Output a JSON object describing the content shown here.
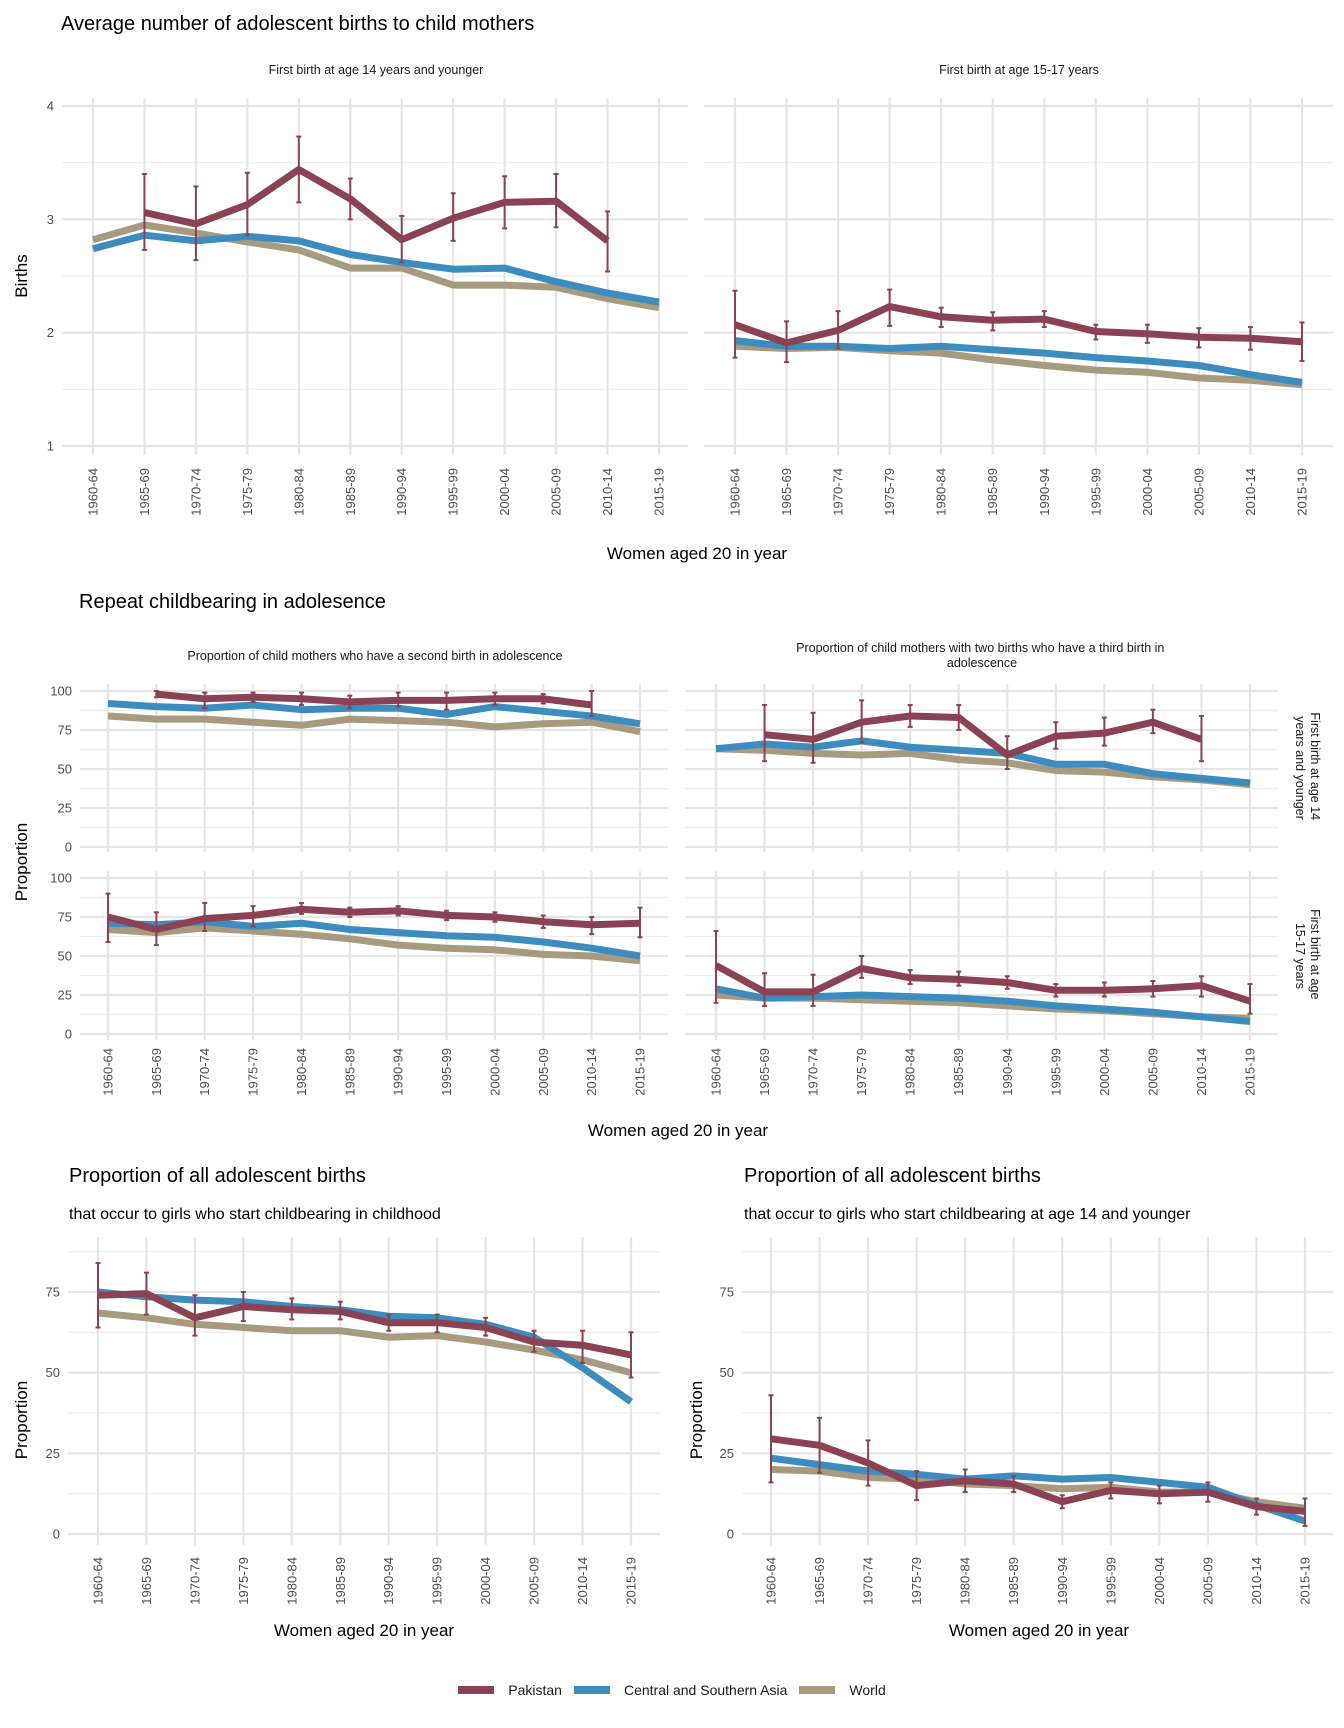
{
  "legend": {
    "items": [
      {
        "name": "Pakistan",
        "color": "#8B4353"
      },
      {
        "name": "Central and Southern Asia",
        "color": "#3D8CBF"
      },
      {
        "name": "World",
        "color": "#A89A7E"
      }
    ]
  },
  "chart_data": [
    {
      "id": "avg-births",
      "type": "line",
      "title": "Average number of adolescent births to child mothers",
      "ylabel": "Births",
      "xlabel": "Women aged 20 in year",
      "ylim": [
        1,
        4
      ],
      "yticks": [
        1,
        2,
        3,
        4
      ],
      "grid": true,
      "categories": [
        "1960-64",
        "1965-69",
        "1970-74",
        "1975-79",
        "1980-84",
        "1985-89",
        "1990-94",
        "1995-99",
        "2000-04",
        "2005-09",
        "2010-14",
        "2015-19"
      ],
      "panels": [
        {
          "strip": "First birth at age 14 years and younger",
          "series": [
            {
              "name": "Pakistan",
              "values": [
                null,
                3.06,
                2.96,
                3.13,
                3.44,
                3.18,
                2.82,
                3.01,
                3.15,
                3.16,
                2.81,
                null
              ],
              "err_low": [
                null,
                2.73,
                2.64,
                2.86,
                3.15,
                3.0,
                2.62,
                2.81,
                2.92,
                2.93,
                2.54,
                null
              ],
              "err_high": [
                null,
                3.4,
                3.29,
                3.41,
                3.73,
                3.36,
                3.03,
                3.23,
                3.38,
                3.4,
                3.07,
                null
              ]
            },
            {
              "name": "Central and Southern Asia",
              "values": [
                2.74,
                2.86,
                2.81,
                2.85,
                2.81,
                2.69,
                2.62,
                2.56,
                2.57,
                2.45,
                2.35,
                2.27
              ]
            },
            {
              "name": "World",
              "values": [
                2.82,
                2.95,
                2.88,
                2.8,
                2.73,
                2.57,
                2.57,
                2.42,
                2.42,
                2.4,
                2.3,
                2.22
              ]
            }
          ]
        },
        {
          "strip": "First birth at age 15-17 years",
          "series": [
            {
              "name": "Pakistan",
              "values": [
                2.07,
                1.91,
                2.02,
                2.23,
                2.14,
                2.11,
                2.12,
                2.01,
                1.99,
                1.96,
                1.95,
                1.92
              ],
              "err_low": [
                1.78,
                1.74,
                1.86,
                2.06,
                2.05,
                2.02,
                2.05,
                1.94,
                1.91,
                1.87,
                1.85,
                1.75
              ],
              "err_high": [
                2.37,
                2.1,
                2.19,
                2.38,
                2.22,
                2.18,
                2.19,
                2.07,
                2.07,
                2.04,
                2.05,
                2.09
              ]
            },
            {
              "name": "Central and Southern Asia",
              "values": [
                1.93,
                1.88,
                1.88,
                1.86,
                1.88,
                1.85,
                1.82,
                1.78,
                1.75,
                1.71,
                1.63,
                1.56
              ]
            },
            {
              "name": "World",
              "values": [
                1.88,
                1.86,
                1.87,
                1.84,
                1.82,
                1.76,
                1.71,
                1.67,
                1.65,
                1.6,
                1.58,
                1.54
              ]
            }
          ]
        }
      ]
    },
    {
      "id": "repeat-childbearing",
      "type": "line",
      "title": "Repeat childbearing in adolesence",
      "ylabel": "Proportion",
      "xlabel": "Women aged 20 in year",
      "ylim": [
        0,
        100
      ],
      "yticks": [
        0,
        25,
        50,
        75,
        100
      ],
      "grid": true,
      "categories": [
        "1960-64",
        "1965-69",
        "1970-74",
        "1975-79",
        "1980-84",
        "1985-89",
        "1990-94",
        "1995-99",
        "2000-04",
        "2005-09",
        "2010-14",
        "2015-19"
      ],
      "columns": [
        "Proportion of child mothers who have a second birth in adolescence",
        "Proportion of child mothers with two births who have a third birth in adolescence"
      ],
      "rows": [
        "First birth at age 14 years and younger",
        "First birth at age 15-17 years"
      ],
      "panels": [
        {
          "row": 0,
          "col": 0,
          "series": [
            {
              "name": "Pakistan",
              "values": [
                null,
                98,
                95,
                96,
                95,
                93,
                94,
                94,
                95,
                95,
                91,
                null
              ],
              "err_low": [
                null,
                96,
                89,
                93,
                91,
                89,
                90,
                88,
                91,
                92,
                84,
                null
              ],
              "err_high": [
                null,
                100,
                99,
                99,
                99,
                97,
                99,
                99,
                99,
                98,
                100,
                null
              ]
            },
            {
              "name": "Central and Southern Asia",
              "values": [
                92,
                90,
                89,
                91,
                88,
                89,
                89,
                85,
                90,
                87,
                84,
                79
              ]
            },
            {
              "name": "World",
              "values": [
                84,
                82,
                82,
                80,
                78,
                82,
                81,
                80,
                77,
                79,
                80,
                74
              ]
            }
          ]
        },
        {
          "row": 0,
          "col": 1,
          "series": [
            {
              "name": "Pakistan",
              "values": [
                null,
                72,
                69,
                80,
                84,
                83,
                59,
                71,
                73,
                80,
                69,
                null
              ],
              "err_low": [
                null,
                55,
                54,
                67,
                77,
                75,
                50,
                63,
                65,
                73,
                55,
                null
              ],
              "err_high": [
                null,
                91,
                86,
                94,
                91,
                91,
                71,
                80,
                83,
                88,
                84,
                null
              ]
            },
            {
              "name": "Central and Southern Asia",
              "values": [
                63,
                66,
                64,
                68,
                64,
                62,
                60,
                53,
                53,
                47,
                44,
                41
              ]
            },
            {
              "name": "World",
              "values": [
                63,
                62,
                60,
                59,
                60,
                56,
                54,
                49,
                48,
                45,
                43,
                40
              ]
            }
          ]
        },
        {
          "row": 1,
          "col": 0,
          "series": [
            {
              "name": "Pakistan",
              "values": [
                75,
                67,
                74,
                76,
                80,
                78,
                79,
                76,
                75,
                72,
                70,
                71
              ],
              "err_low": [
                59,
                57,
                66,
                69,
                77,
                75,
                76,
                73,
                72,
                68,
                64,
                62
              ],
              "err_high": [
                90,
                78,
                84,
                82,
                84,
                81,
                82,
                79,
                78,
                76,
                75,
                81
              ]
            },
            {
              "name": "Central and Southern Asia",
              "values": [
                71,
                70,
                72,
                69,
                71,
                67,
                65,
                63,
                62,
                59,
                55,
                50
              ]
            },
            {
              "name": "World",
              "values": [
                67,
                65,
                68,
                66,
                64,
                61,
                57,
                55,
                54,
                51,
                50,
                47
              ]
            }
          ]
        },
        {
          "row": 1,
          "col": 1,
          "series": [
            {
              "name": "Pakistan",
              "values": [
                44,
                27,
                27,
                42,
                36,
                35,
                33,
                28,
                28,
                29,
                31,
                21
              ],
              "err_low": [
                20,
                18,
                18,
                36,
                32,
                31,
                29,
                24,
                24,
                24,
                24,
                13
              ],
              "err_high": [
                66,
                39,
                38,
                50,
                41,
                40,
                37,
                32,
                33,
                34,
                37,
                32
              ]
            },
            {
              "name": "Central and Southern Asia",
              "values": [
                29,
                23,
                24,
                25,
                24,
                23,
                21,
                18,
                16,
                14,
                11,
                8
              ]
            },
            {
              "name": "World",
              "values": [
                25,
                23,
                23,
                22,
                21,
                20,
                18,
                16,
                15,
                13,
                11,
                10
              ]
            }
          ]
        }
      ]
    },
    {
      "id": "share-childhood",
      "type": "line",
      "title": "Proportion of all adolescent births",
      "subtitle": "that occur to girls who start childbearing in childhood",
      "ylabel": "Proportion",
      "xlabel": "Women aged 20 in year",
      "ylim": [
        0,
        95
      ],
      "yticks": [
        0,
        25,
        50,
        75
      ],
      "grid": true,
      "categories": [
        "1960-64",
        "1965-69",
        "1970-74",
        "1975-79",
        "1980-84",
        "1985-89",
        "1990-94",
        "1995-99",
        "2000-04",
        "2005-09",
        "2010-14",
        "2015-19"
      ],
      "series": [
        {
          "name": "Pakistan",
          "values": [
            74,
            74.5,
            67,
            70.5,
            69.5,
            69,
            65.5,
            65.5,
            64,
            59.5,
            58.5,
            55.5
          ],
          "err_low": [
            64,
            68,
            61.5,
            66,
            66.5,
            66.5,
            63,
            62.5,
            61.5,
            56.5,
            53,
            48.5
          ],
          "err_high": [
            84,
            81,
            74,
            75,
            73,
            72,
            68,
            68,
            67,
            63,
            63,
            62.5
          ]
        },
        {
          "name": "Central and Southern Asia",
          "values": [
            75,
            73.5,
            72.5,
            72,
            70.5,
            69.5,
            67.5,
            67,
            65,
            61,
            51.5,
            41
          ]
        },
        {
          "name": "World",
          "values": [
            68.5,
            67,
            65,
            64,
            63,
            63,
            61,
            61.5,
            59.5,
            57,
            54,
            50
          ]
        }
      ]
    },
    {
      "id": "share-14-younger",
      "type": "line",
      "title": "Proportion of all adolescent births",
      "subtitle": "that occur to girls who start childbearing at age 14 and younger",
      "ylabel": "Proportion",
      "xlabel": "Women aged 20 in year",
      "ylim": [
        0,
        95
      ],
      "yticks": [
        0,
        25,
        50,
        75
      ],
      "grid": true,
      "categories": [
        "1960-64",
        "1965-69",
        "1970-74",
        "1975-79",
        "1980-84",
        "1985-89",
        "1990-94",
        "1995-99",
        "2000-04",
        "2005-09",
        "2010-14",
        "2015-19"
      ],
      "series": [
        {
          "name": "Pakistan",
          "values": [
            29.5,
            27.5,
            22,
            15,
            16.5,
            15.5,
            10,
            13.5,
            12.5,
            13,
            8.5,
            7
          ],
          "err_low": [
            16,
            19,
            15,
            10.5,
            13,
            13,
            8,
            11,
            9.5,
            10,
            6,
            2.5
          ],
          "err_high": [
            43,
            36,
            29,
            19.5,
            20,
            18,
            12,
            16,
            15,
            16,
            11,
            11
          ]
        },
        {
          "name": "Central and Southern Asia",
          "values": [
            23.5,
            21.5,
            19.5,
            18.5,
            17,
            18,
            17,
            17.5,
            16,
            14.5,
            9,
            4
          ]
        },
        {
          "name": "World",
          "values": [
            20,
            19.5,
            17.5,
            17,
            15.5,
            15,
            14,
            14.5,
            13,
            13,
            10,
            8
          ]
        }
      ]
    }
  ]
}
